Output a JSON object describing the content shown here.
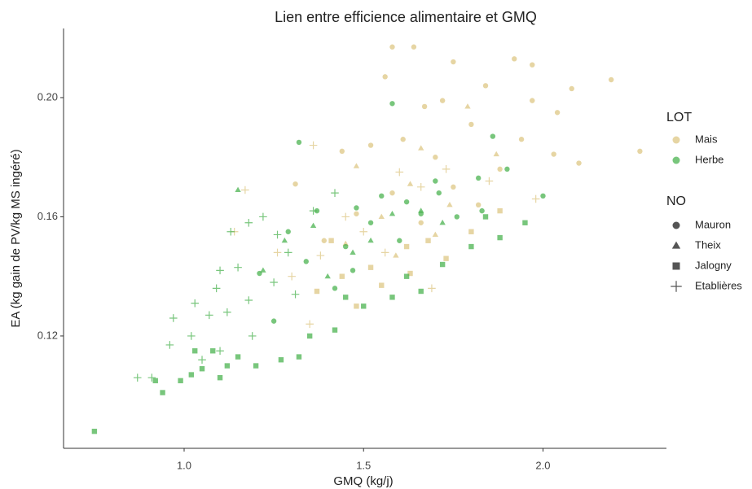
{
  "chart_data": {
    "type": "scatter",
    "title": "Lien entre efficience alimentaire et GMQ",
    "x_label": "GMQ (kg/j)",
    "y_label": "EA (kg gain de PV/kg MS ingéré)",
    "xlim": [
      0.664,
      2.344
    ],
    "ylim": [
      0.0823,
      0.2232
    ],
    "xticks": [
      {
        "value": 1,
        "label": "1.0"
      },
      1.5,
      {
        "value": 2,
        "label": "2.0"
      }
    ],
    "yticks": [
      {
        "value": 0.12,
        "label": "0.12"
      },
      {
        "value": 0.16,
        "label": "0.16"
      },
      {
        "value": 0.2,
        "label": "0.20"
      }
    ],
    "grid": false,
    "opacity": 0.7,
    "shape_legend": {
      "title": "NO",
      "items": [
        {
          "name": "Mauron",
          "shape": "circle"
        },
        {
          "name": "Theix",
          "shape": "triangle"
        },
        {
          "name": "Jalogny",
          "shape": "square"
        },
        {
          "name": "Etablières",
          "shape": "plus"
        }
      ]
    },
    "color_legend_title": "LOT",
    "series": [
      {
        "name": "Mais",
        "color": "#dcc37c",
        "groups": [
          {
            "x": [
              1.58,
              1.64,
              1.56,
              1.75,
              1.92,
              1.97,
              2.19,
              2.08,
              2.04,
              1.97,
              1.84,
              1.72,
              1.67,
              1.8,
              1.94,
              2.03,
              2.1,
              2.27,
              1.88,
              1.7,
              1.61,
              1.52,
              1.44,
              1.31,
              1.75,
              1.58,
              1.48,
              1.82,
              1.66,
              1.39
            ],
            "y": [
              0.217,
              0.217,
              0.207,
              0.212,
              0.213,
              0.211,
              0.206,
              0.203,
              0.195,
              0.199,
              0.204,
              0.199,
              0.197,
              0.191,
              0.186,
              0.181,
              0.178,
              0.182,
              0.176,
              0.18,
              0.186,
              0.184,
              0.182,
              0.171,
              0.17,
              0.168,
              0.161,
              0.164,
              0.158,
              0.152
            ]
          },
          {
            "x": [
              1.79,
              1.66,
              1.48,
              1.87,
              1.63,
              1.74,
              1.55,
              1.45,
              1.7,
              1.59
            ],
            "y": [
              0.197,
              0.183,
              0.177,
              0.181,
              0.171,
              0.164,
              0.16,
              0.151,
              0.154,
              0.147
            ]
          },
          {
            "x": [
              1.37,
              1.44,
              1.52,
              1.55,
              1.62,
              1.68,
              1.8,
              1.88,
              1.48,
              1.63,
              1.73,
              1.41
            ],
            "y": [
              0.135,
              0.14,
              0.143,
              0.137,
              0.15,
              0.152,
              0.155,
              0.162,
              0.13,
              0.141,
              0.146,
              0.152
            ]
          },
          {
            "x": [
              1.14,
              1.17,
              1.36,
              1.3,
              1.38,
              1.45,
              1.5,
              1.66,
              1.73,
              1.85,
              1.98,
              1.56,
              1.69,
              1.35,
              1.26,
              1.6
            ],
            "y": [
              0.155,
              0.169,
              0.184,
              0.14,
              0.147,
              0.16,
              0.155,
              0.17,
              0.176,
              0.172,
              0.166,
              0.148,
              0.136,
              0.124,
              0.148,
              0.175
            ]
          }
        ]
      },
      {
        "name": "Herbe",
        "color": "#3fae45",
        "groups": [
          {
            "x": [
              1.58,
              1.32,
              1.86,
              1.9,
              1.82,
              1.7,
              1.62,
              1.55,
              1.48,
              1.37,
              1.29,
              1.21,
              1.45,
              1.52,
              1.66,
              1.76,
              2.0,
              1.34,
              1.42,
              1.25,
              1.6,
              1.47,
              1.71,
              1.83
            ],
            "y": [
              0.198,
              0.185,
              0.187,
              0.176,
              0.173,
              0.172,
              0.165,
              0.167,
              0.163,
              0.162,
              0.155,
              0.141,
              0.15,
              0.158,
              0.161,
              0.16,
              0.167,
              0.145,
              0.136,
              0.125,
              0.152,
              0.142,
              0.168,
              0.162
            ]
          },
          {
            "x": [
              1.15,
              1.28,
              1.36,
              1.47,
              1.58,
              1.66,
              1.4,
              1.52,
              1.72,
              1.22
            ],
            "y": [
              0.169,
              0.152,
              0.157,
              0.148,
              0.161,
              0.162,
              0.14,
              0.152,
              0.158,
              0.142
            ]
          },
          {
            "x": [
              0.75,
              0.94,
              0.92,
              0.99,
              1.02,
              1.05,
              1.08,
              1.12,
              1.15,
              1.2,
              1.27,
              1.32,
              1.35,
              1.42,
              1.5,
              1.58,
              1.66,
              1.72,
              1.8,
              1.88,
              1.95,
              1.84,
              1.62,
              1.45,
              1.03,
              1.1
            ],
            "y": [
              0.088,
              0.101,
              0.105,
              0.105,
              0.107,
              0.109,
              0.115,
              0.11,
              0.113,
              0.11,
              0.112,
              0.113,
              0.12,
              0.122,
              0.13,
              0.133,
              0.135,
              0.144,
              0.15,
              0.153,
              0.158,
              0.16,
              0.14,
              0.133,
              0.115,
              0.106
            ]
          },
          {
            "x": [
              0.87,
              0.91,
              0.96,
              0.97,
              1.02,
              1.03,
              1.07,
              1.09,
              1.1,
              1.12,
              1.15,
              1.18,
              1.13,
              1.19,
              1.22,
              1.26,
              1.29,
              1.31,
              1.18,
              1.36,
              1.42,
              1.1,
              1.25,
              1.05
            ],
            "y": [
              0.106,
              0.106,
              0.117,
              0.126,
              0.12,
              0.131,
              0.127,
              0.136,
              0.142,
              0.128,
              0.143,
              0.132,
              0.155,
              0.12,
              0.16,
              0.154,
              0.148,
              0.134,
              0.158,
              0.162,
              0.168,
              0.115,
              0.138,
              0.112
            ]
          }
        ]
      }
    ]
  }
}
